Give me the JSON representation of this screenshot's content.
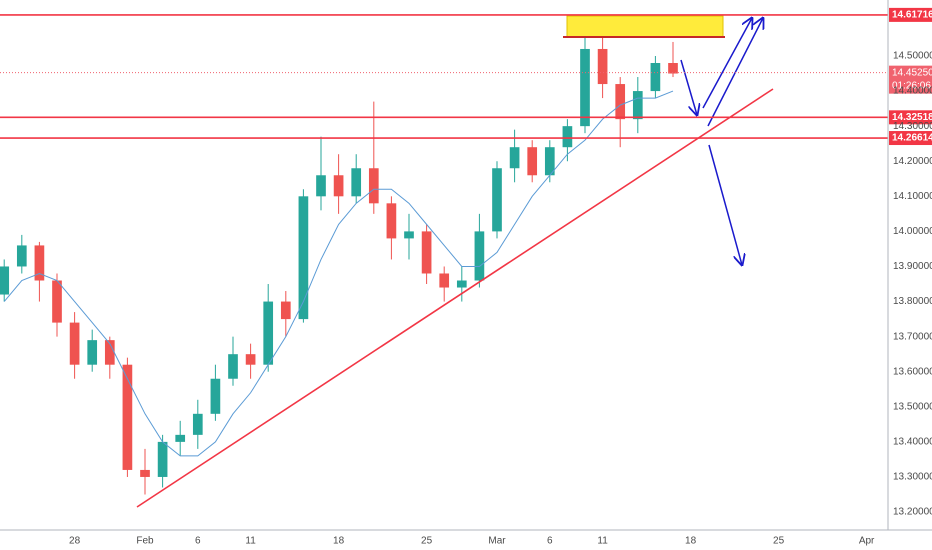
{
  "chart_data": {
    "type": "candlestick",
    "x": [
      -8,
      -7,
      -6,
      -5,
      -4,
      -3,
      -2,
      -1,
      0,
      1,
      2,
      3,
      4,
      5,
      6,
      7,
      8,
      9,
      10,
      11,
      12,
      13,
      14,
      15,
      16,
      17,
      18,
      19,
      20,
      21,
      22,
      23,
      24,
      25,
      26,
      27,
      28,
      29,
      30
    ],
    "open": [
      13.82,
      13.9,
      13.96,
      13.86,
      13.74,
      13.62,
      13.69,
      13.62,
      13.32,
      13.3,
      13.4,
      13.42,
      13.48,
      13.58,
      13.65,
      13.62,
      13.8,
      13.75,
      14.1,
      14.16,
      14.1,
      14.18,
      14.08,
      13.98,
      14.0,
      13.88,
      13.84,
      13.86,
      14.0,
      14.18,
      14.24,
      14.16,
      14.24,
      14.3,
      14.52,
      14.42,
      14.32,
      14.4,
      14.48
    ],
    "high": [
      13.92,
      13.99,
      13.97,
      13.88,
      13.77,
      13.72,
      13.7,
      13.64,
      13.38,
      13.42,
      13.46,
      13.52,
      13.62,
      13.7,
      13.68,
      13.85,
      13.83,
      14.12,
      14.27,
      14.22,
      14.22,
      14.37,
      14.1,
      14.05,
      14.02,
      13.9,
      13.9,
      14.05,
      14.2,
      14.29,
      14.26,
      14.26,
      14.32,
      14.58,
      14.56,
      14.44,
      14.44,
      14.5,
      14.54
    ],
    "low": [
      13.8,
      13.88,
      13.8,
      13.7,
      13.58,
      13.6,
      13.58,
      13.3,
      13.25,
      13.27,
      13.36,
      13.38,
      13.46,
      13.56,
      13.58,
      13.6,
      13.7,
      13.74,
      14.06,
      14.05,
      14.08,
      14.05,
      13.92,
      13.92,
      13.85,
      13.8,
      13.8,
      13.84,
      13.98,
      14.14,
      14.14,
      14.14,
      14.2,
      14.28,
      14.38,
      14.24,
      14.28,
      14.38,
      14.44
    ],
    "close": [
      13.9,
      13.96,
      13.86,
      13.74,
      13.62,
      13.69,
      13.62,
      13.32,
      13.3,
      13.4,
      13.42,
      13.48,
      13.58,
      13.65,
      13.62,
      13.8,
      13.75,
      14.1,
      14.16,
      14.1,
      14.18,
      14.08,
      13.98,
      14.0,
      13.88,
      13.84,
      13.86,
      14.0,
      14.18,
      14.24,
      14.16,
      14.24,
      14.3,
      14.52,
      14.42,
      14.32,
      14.4,
      14.48,
      14.45
    ],
    "up_color": "#26a69a",
    "down_color": "#ef5350",
    "moving_average": {
      "color": "#5b9bd5",
      "values": [
        13.8,
        13.86,
        13.88,
        13.86,
        13.8,
        13.74,
        13.68,
        13.58,
        13.48,
        13.4,
        13.36,
        13.36,
        13.4,
        13.48,
        13.54,
        13.62,
        13.7,
        13.8,
        13.92,
        14.02,
        14.08,
        14.12,
        14.12,
        14.08,
        14.02,
        13.96,
        13.9,
        13.9,
        13.94,
        14.02,
        14.1,
        14.16,
        14.22,
        14.26,
        14.32,
        14.36,
        14.38,
        14.38,
        14.4
      ]
    },
    "xlim": [
      -8.239,
      42.216
    ],
    "xticks": [
      {
        "value": -4,
        "label": "28"
      },
      {
        "value": 0,
        "label": "Feb"
      },
      {
        "value": 3,
        "label": "6"
      },
      {
        "value": 6,
        "label": "11"
      },
      {
        "value": 11,
        "label": "18"
      },
      {
        "value": 16,
        "label": "25"
      },
      {
        "value": 20,
        "label": "Mar"
      },
      {
        "value": 23,
        "label": "6"
      },
      {
        "value": 26,
        "label": "11"
      },
      {
        "value": 31,
        "label": "18"
      },
      {
        "value": 36,
        "label": "25"
      },
      {
        "value": 41,
        "label": "Apr"
      }
    ],
    "ylim": [
      13.1488,
      14.6596
    ],
    "yticks": [
      {
        "value": 13.2,
        "label": "13.20000"
      },
      {
        "value": 13.3,
        "label": "13.30000"
      },
      {
        "value": 13.4,
        "label": "13.40000"
      },
      {
        "value": 13.5,
        "label": "13.50000"
      },
      {
        "value": 13.6,
        "label": "13.60000"
      },
      {
        "value": 13.7,
        "label": "13.70000"
      },
      {
        "value": 13.8,
        "label": "13.80000"
      },
      {
        "value": 13.9,
        "label": "13.90000"
      },
      {
        "value": 14.0,
        "label": "14.00000"
      },
      {
        "value": 14.1,
        "label": "14.10000"
      },
      {
        "value": 14.2,
        "label": "14.20000"
      },
      {
        "value": 14.3,
        "label": "14.30000"
      },
      {
        "value": 14.4,
        "label": "14.40000"
      },
      {
        "value": 14.5,
        "label": "14.50000"
      }
    ],
    "grid": true,
    "levels": [
      14.61716,
      14.32518,
      14.26614
    ],
    "level_color": "#f23645",
    "last_price": {
      "value": 14.4525,
      "label": "14.45250",
      "countdown": "01:26:06",
      "color": "#f0626e"
    }
  }
}
